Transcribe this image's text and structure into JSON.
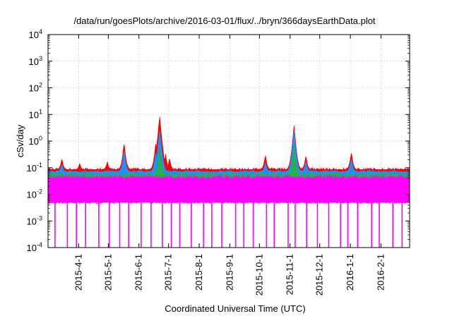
{
  "chart_data": {
    "type": "area",
    "title": "/data/run/goesPlots/archive/2016-03-01/flux/../bryn/366daysEarthData.plot",
    "xlabel": "Coordinated Universal Time (UTC)",
    "ylabel": "cSv/day",
    "y_scale": "log",
    "ylim": [
      0.0001,
      10000
    ],
    "xlim": [
      "2015-03-01",
      "2016-03-01"
    ],
    "grid": true,
    "y_ticks": [
      {
        "value": 0.0001,
        "base": "10",
        "exp": "-4"
      },
      {
        "value": 0.001,
        "base": "10",
        "exp": "-3"
      },
      {
        "value": 0.01,
        "base": "10",
        "exp": "-2"
      },
      {
        "value": 0.1,
        "base": "10",
        "exp": "-1"
      },
      {
        "value": 1,
        "base": "10",
        "exp": "0"
      },
      {
        "value": 10,
        "base": "10",
        "exp": "1"
      },
      {
        "value": 100,
        "base": "10",
        "exp": "2"
      },
      {
        "value": 1000,
        "base": "10",
        "exp": "3"
      },
      {
        "value": 10000,
        "base": "10",
        "exp": "4"
      }
    ],
    "x_ticks": [
      {
        "date": "2015-04-01",
        "label": "2015-4-1"
      },
      {
        "date": "2015-05-01",
        "label": "2015-5-1"
      },
      {
        "date": "2015-06-01",
        "label": "2015-6-1"
      },
      {
        "date": "2015-07-01",
        "label": "2015-7-1"
      },
      {
        "date": "2015-08-01",
        "label": "2015-8-1"
      },
      {
        "date": "2015-09-01",
        "label": "2015-9-1"
      },
      {
        "date": "2015-10-01",
        "label": "2015-10-1"
      },
      {
        "date": "2015-11-01",
        "label": "2015-11-1"
      },
      {
        "date": "2015-12-01",
        "label": "2015-12-1"
      },
      {
        "date": "2016-01-01",
        "label": "2016-1-1"
      },
      {
        "date": "2016-02-01",
        "label": "2016-2-1"
      }
    ],
    "series": [
      {
        "color": "#ff0000",
        "baseline": 0.085,
        "peaks": [
          {
            "date": "2015-03-15",
            "value": 0.25
          },
          {
            "date": "2015-04-02",
            "value": 0.15
          },
          {
            "date": "2015-04-30",
            "value": 0.18
          },
          {
            "date": "2015-05-17",
            "value": 0.95
          },
          {
            "date": "2015-06-18",
            "value": 0.9
          },
          {
            "date": "2015-06-22",
            "value": 9.5
          },
          {
            "date": "2015-06-25",
            "value": 0.5
          },
          {
            "date": "2015-06-28",
            "value": 0.35
          },
          {
            "date": "2015-07-02",
            "value": 0.25
          },
          {
            "date": "2015-10-07",
            "value": 0.35
          },
          {
            "date": "2015-11-05",
            "value": 4.0
          },
          {
            "date": "2015-11-08",
            "value": 0.3
          },
          {
            "date": "2015-11-17",
            "value": 0.32
          },
          {
            "date": "2016-01-02",
            "value": 0.45
          }
        ]
      },
      {
        "color": "#1e90ff",
        "baseline": 0.07,
        "peaks": [
          {
            "date": "2015-03-15",
            "value": 0.15
          },
          {
            "date": "2015-05-17",
            "value": 0.5
          },
          {
            "date": "2015-06-18",
            "value": 0.4
          },
          {
            "date": "2015-06-22",
            "value": 3.0
          },
          {
            "date": "2015-06-25",
            "value": 0.3
          },
          {
            "date": "2015-10-07",
            "value": 0.18
          },
          {
            "date": "2015-11-05",
            "value": 2.5
          },
          {
            "date": "2015-11-17",
            "value": 0.2
          },
          {
            "date": "2016-01-02",
            "value": 0.25
          }
        ]
      },
      {
        "color": "#22b14c",
        "baseline": 0.055,
        "peaks": [
          {
            "date": "2015-06-22",
            "value": 0.6
          },
          {
            "date": "2015-11-05",
            "value": 0.7
          }
        ]
      },
      {
        "color": "#ff00ff",
        "baseline": 0.045,
        "floor": 0.005,
        "dropouts": 34
      }
    ]
  }
}
